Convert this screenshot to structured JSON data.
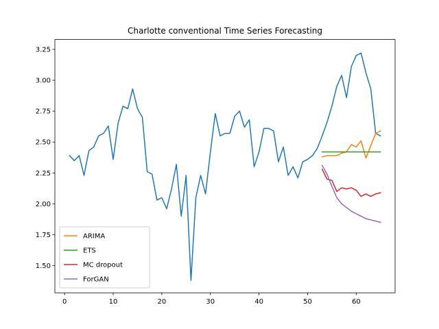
{
  "chart_data": {
    "type": "line",
    "title": "Charlotte conventional Time Series Forecasting",
    "xlabel": "",
    "ylabel": "",
    "xlim": [
      -2,
      68
    ],
    "ylim": [
      1.28,
      3.33
    ],
    "xticks": [
      0,
      10,
      20,
      30,
      40,
      50,
      60
    ],
    "yticks": [
      1.5,
      1.75,
      2.0,
      2.25,
      2.5,
      2.75,
      3.0,
      3.25
    ],
    "ytick_labels": [
      "1.50",
      "1.75",
      "2.00",
      "2.25",
      "2.50",
      "2.75",
      "3.00",
      "3.25"
    ],
    "grid": false,
    "legend_position": "lower-left",
    "series": [
      {
        "name": "",
        "color": "#1f77b4",
        "x": [
          1,
          2,
          3,
          4,
          5,
          6,
          7,
          8,
          9,
          10,
          11,
          12,
          13,
          14,
          15,
          16,
          17,
          18,
          19,
          20,
          21,
          22,
          23,
          24,
          25,
          26,
          27,
          28,
          29,
          30,
          31,
          32,
          33,
          34,
          35,
          36,
          37,
          38,
          39,
          40,
          41,
          42,
          43,
          44,
          45,
          46,
          47,
          48,
          49,
          50,
          51,
          52,
          53,
          54,
          55,
          56,
          57,
          58,
          59,
          60,
          61,
          62,
          63,
          64,
          65
        ],
        "values": [
          2.39,
          2.35,
          2.39,
          2.23,
          2.43,
          2.46,
          2.55,
          2.57,
          2.63,
          2.36,
          2.65,
          2.79,
          2.77,
          2.93,
          2.77,
          2.7,
          2.26,
          2.24,
          2.03,
          2.05,
          1.96,
          2.12,
          2.32,
          1.9,
          2.23,
          1.38,
          2.05,
          2.23,
          2.08,
          2.42,
          2.73,
          2.55,
          2.57,
          2.57,
          2.71,
          2.75,
          2.62,
          2.68,
          2.3,
          2.42,
          2.61,
          2.61,
          2.59,
          2.34,
          2.46,
          2.23,
          2.3,
          2.21,
          2.34,
          2.36,
          2.39,
          2.45,
          2.55,
          2.66,
          2.79,
          2.95,
          3.04,
          2.86,
          3.11,
          3.2,
          3.22,
          3.06,
          2.93,
          2.57,
          2.55
        ]
      },
      {
        "name": "ARIMA",
        "color": "#ff7f0e",
        "x": [
          53,
          54,
          55,
          56,
          57,
          58,
          59,
          60,
          61,
          62,
          63,
          64,
          65
        ],
        "values": [
          2.38,
          2.39,
          2.39,
          2.39,
          2.41,
          2.42,
          2.48,
          2.46,
          2.51,
          2.37,
          2.47,
          2.57,
          2.59
        ]
      },
      {
        "name": "ETS",
        "color": "#2ca02c",
        "x": [
          53,
          54,
          55,
          56,
          57,
          58,
          59,
          60,
          61,
          62,
          63,
          64,
          65
        ],
        "values": [
          2.42,
          2.42,
          2.42,
          2.42,
          2.42,
          2.42,
          2.42,
          2.42,
          2.42,
          2.42,
          2.42,
          2.42,
          2.42
        ]
      },
      {
        "name": "MC dropout",
        "color": "#d62728",
        "x": [
          53,
          54,
          55,
          56,
          57,
          58,
          59,
          60,
          61,
          62,
          63,
          64,
          65
        ],
        "values": [
          2.28,
          2.2,
          2.19,
          2.1,
          2.13,
          2.12,
          2.13,
          2.11,
          2.06,
          2.08,
          2.06,
          2.08,
          2.09
        ]
      },
      {
        "name": "ForGAN",
        "color": "#9467bd",
        "x": [
          53,
          54,
          55,
          56,
          57,
          58,
          59,
          60,
          61,
          62,
          63,
          64,
          65
        ],
        "values": [
          2.31,
          2.24,
          2.14,
          2.05,
          2.0,
          1.97,
          1.94,
          1.92,
          1.9,
          1.88,
          1.87,
          1.86,
          1.85
        ]
      }
    ]
  }
}
